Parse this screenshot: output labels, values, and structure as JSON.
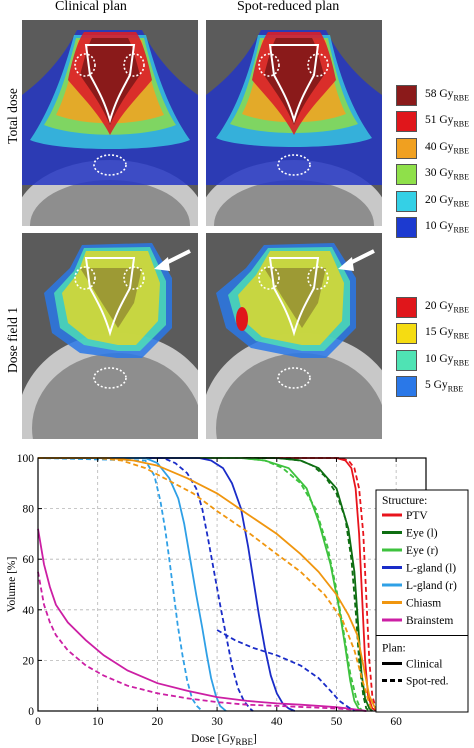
{
  "column_titles": [
    "Clinical plan",
    "Spot-reduced plan"
  ],
  "row_labels": [
    "Total dose",
    "Dose field 1"
  ],
  "total_dose_legend": [
    {
      "value": "58 Gy",
      "sub": "RBE",
      "color": "#8b1a1a"
    },
    {
      "value": "51 Gy",
      "sub": "RBE",
      "color": "#e0161b"
    },
    {
      "value": "40 Gy",
      "sub": "RBE",
      "color": "#f0a020"
    },
    {
      "value": "30 Gy",
      "sub": "RBE",
      "color": "#8fe04a"
    },
    {
      "value": "20 Gy",
      "sub": "RBE",
      "color": "#34d0e6"
    },
    {
      "value": "10 Gy",
      "sub": "RBE",
      "color": "#1c3ad0"
    }
  ],
  "field_legend": [
    {
      "value": "20 Gy",
      "sub": "RBE",
      "color": "#e0161b"
    },
    {
      "value": "15 Gy",
      "sub": "RBE",
      "color": "#f5dc12"
    },
    {
      "value": "10 Gy",
      "sub": "RBE",
      "color": "#4fe3b4"
    },
    {
      "value": "5 Gy",
      "sub": "RBE",
      "color": "#2a78e8"
    }
  ],
  "chart_data": {
    "type": "line",
    "xlabel": "Dose [Gy",
    "xlabel_sub": "RBE",
    "xlabel_suffix": "]",
    "ylabel": "Volume [%]",
    "xlim": [
      0,
      65
    ],
    "ylim": [
      0,
      100
    ],
    "xticks": [
      0,
      10,
      20,
      30,
      40,
      50,
      60
    ],
    "yticks": [
      0,
      20,
      40,
      60,
      80,
      100
    ],
    "grid": true,
    "legend_placement": "right",
    "structure_legend_title": "Structure:",
    "plan_legend_title": "Plan:",
    "plan_styles": [
      {
        "name": "Clinical",
        "dash": "solid"
      },
      {
        "name": "Spot-red.",
        "dash": "dashed"
      }
    ],
    "series": [
      {
        "name": "PTV",
        "color": "#e8141c",
        "clinical": [
          [
            0,
            100
          ],
          [
            50,
            100
          ],
          [
            51.5,
            99
          ],
          [
            52.5,
            96
          ],
          [
            53.2,
            88
          ],
          [
            53.8,
            70
          ],
          [
            54.3,
            45
          ],
          [
            54.8,
            20
          ],
          [
            55.3,
            6
          ],
          [
            56,
            1
          ],
          [
            57,
            0
          ]
        ],
        "spot": [
          [
            0,
            100
          ],
          [
            50.5,
            100
          ],
          [
            52,
            99
          ],
          [
            53,
            96
          ],
          [
            53.8,
            88
          ],
          [
            54.5,
            70
          ],
          [
            55,
            45
          ],
          [
            55.5,
            20
          ],
          [
            56,
            6
          ],
          [
            56.6,
            1
          ],
          [
            57.5,
            0
          ]
        ]
      },
      {
        "name": "Eye (l)",
        "color": "#0e6e12",
        "clinical": [
          [
            0,
            100
          ],
          [
            40,
            100
          ],
          [
            44,
            99
          ],
          [
            47,
            96
          ],
          [
            50,
            88
          ],
          [
            52,
            72
          ],
          [
            53,
            55
          ],
          [
            53.6,
            35
          ],
          [
            54.2,
            15
          ],
          [
            54.8,
            5
          ],
          [
            55.5,
            1
          ],
          [
            56,
            0
          ]
        ],
        "spot": [
          [
            0,
            100
          ],
          [
            40,
            100
          ],
          [
            44,
            99
          ],
          [
            46,
            97
          ],
          [
            48,
            93
          ],
          [
            50,
            86
          ],
          [
            51.5,
            76
          ],
          [
            52.5,
            60
          ],
          [
            53.2,
            40
          ],
          [
            53.8,
            20
          ],
          [
            54.5,
            6
          ],
          [
            55,
            1
          ],
          [
            55.6,
            0
          ]
        ]
      },
      {
        "name": "Eye (r)",
        "color": "#3ec23e",
        "clinical": [
          [
            0,
            100
          ],
          [
            34,
            100
          ],
          [
            38,
            99
          ],
          [
            42,
            96
          ],
          [
            45,
            88
          ],
          [
            47,
            75
          ],
          [
            49,
            58
          ],
          [
            50.5,
            40
          ],
          [
            51.5,
            25
          ],
          [
            52.3,
            12
          ],
          [
            53,
            4
          ],
          [
            53.7,
            1
          ],
          [
            54,
            0
          ]
        ],
        "spot": [
          [
            0,
            100
          ],
          [
            34,
            100
          ],
          [
            38,
            99
          ],
          [
            41,
            96
          ],
          [
            44,
            90
          ],
          [
            46.5,
            80
          ],
          [
            48.5,
            65
          ],
          [
            50,
            48
          ],
          [
            51.3,
            30
          ],
          [
            52.3,
            15
          ],
          [
            53.3,
            5
          ],
          [
            54,
            1
          ],
          [
            54.4,
            0
          ]
        ]
      },
      {
        "name": "L-gland (l)",
        "color": "#1a2cc8",
        "clinical": [
          [
            0,
            100
          ],
          [
            27,
            100
          ],
          [
            29,
            99
          ],
          [
            31,
            96
          ],
          [
            32.5,
            90
          ],
          [
            34,
            80
          ],
          [
            35.2,
            65
          ],
          [
            36.2,
            50
          ],
          [
            37,
            38
          ],
          [
            38,
            25
          ],
          [
            39,
            14
          ],
          [
            40,
            7
          ],
          [
            41,
            3
          ],
          [
            42,
            1
          ],
          [
            43,
            0
          ]
        ],
        "spot": [
          [
            0,
            100
          ],
          [
            21,
            100
          ],
          [
            23,
            98
          ],
          [
            25,
            94
          ],
          [
            26.5,
            88
          ],
          [
            27.5,
            80
          ],
          [
            28.5,
            68
          ],
          [
            29.5,
            55
          ],
          [
            30.5,
            42
          ],
          [
            31.5,
            30
          ],
          [
            32.5,
            18
          ],
          [
            33.5,
            9
          ],
          [
            34.5,
            4
          ],
          [
            35.5,
            1
          ],
          [
            36,
            0
          ]
        ]
      },
      {
        "name": "L-gland (r)",
        "color": "#2fa0e6",
        "clinical": [
          [
            0,
            100
          ],
          [
            18,
            100
          ],
          [
            20,
            98
          ],
          [
            22,
            92
          ],
          [
            23.5,
            84
          ],
          [
            24.5,
            74
          ],
          [
            25.5,
            60
          ],
          [
            26.5,
            46
          ],
          [
            27.5,
            33
          ],
          [
            28.3,
            22
          ],
          [
            29,
            13
          ],
          [
            29.8,
            6
          ],
          [
            30.5,
            2
          ],
          [
            31.5,
            0
          ]
        ],
        "spot": [
          [
            0,
            100
          ],
          [
            18,
            99
          ],
          [
            19.5,
            93
          ],
          [
            20.5,
            83
          ],
          [
            21.3,
            72
          ],
          [
            22,
            60
          ],
          [
            22.7,
            47
          ],
          [
            23.4,
            34
          ],
          [
            24.2,
            22
          ],
          [
            25,
            12
          ],
          [
            25.8,
            5
          ],
          [
            26.6,
            2
          ],
          [
            27.5,
            0
          ]
        ]
      },
      {
        "name": "Chiasm",
        "color": "#f0960f",
        "clinical": [
          [
            0,
            100
          ],
          [
            12,
            100
          ],
          [
            16,
            99
          ],
          [
            20,
            97
          ],
          [
            25,
            92
          ],
          [
            30,
            86
          ],
          [
            35,
            78
          ],
          [
            40,
            70
          ],
          [
            44,
            62
          ],
          [
            47,
            55
          ],
          [
            50,
            46
          ],
          [
            52,
            38
          ],
          [
            53.5,
            30
          ],
          [
            54.5,
            18
          ],
          [
            55.5,
            6
          ],
          [
            56.5,
            1
          ],
          [
            57,
            0
          ]
        ],
        "spot": [
          [
            0,
            100
          ],
          [
            10,
            100
          ],
          [
            14,
            99
          ],
          [
            18,
            96
          ],
          [
            22,
            91
          ],
          [
            26,
            86
          ],
          [
            30,
            79
          ],
          [
            35,
            71
          ],
          [
            40,
            62
          ],
          [
            44,
            55
          ],
          [
            48,
            46
          ],
          [
            51,
            36
          ],
          [
            53,
            24
          ],
          [
            54.5,
            11
          ],
          [
            55.5,
            3
          ],
          [
            56,
            0
          ]
        ]
      },
      {
        "name": "Brainstem",
        "color": "#cc1fa4",
        "clinical": [
          [
            0,
            72
          ],
          [
            1,
            58
          ],
          [
            2,
            49
          ],
          [
            3,
            42
          ],
          [
            5,
            35
          ],
          [
            8,
            28
          ],
          [
            11,
            22
          ],
          [
            15,
            16
          ],
          [
            20,
            11
          ],
          [
            25,
            8
          ],
          [
            30,
            5.5
          ],
          [
            35,
            4
          ],
          [
            40,
            3
          ],
          [
            44,
            2.5
          ],
          [
            47,
            2
          ],
          [
            50,
            1.5
          ],
          [
            52,
            1
          ],
          [
            54,
            0.3
          ],
          [
            55,
            0
          ]
        ],
        "spot": [
          [
            0,
            55
          ],
          [
            1,
            42
          ],
          [
            2,
            35
          ],
          [
            3,
            30
          ],
          [
            5,
            24
          ],
          [
            8,
            18
          ],
          [
            11,
            14
          ],
          [
            15,
            10
          ],
          [
            20,
            7
          ],
          [
            25,
            5
          ],
          [
            30,
            3.5
          ],
          [
            35,
            2.5
          ],
          [
            40,
            2
          ],
          [
            45,
            1.5
          ],
          [
            50,
            1
          ],
          [
            53,
            0.5
          ],
          [
            55,
            0
          ]
        ]
      }
    ],
    "extra_series": [
      {
        "name": "dark-blue dashed high-dose tail (Spot-reduced)",
        "color": "#1a2cc8",
        "dash": "dashed",
        "points": [
          [
            30,
            32
          ],
          [
            33,
            28
          ],
          [
            36,
            25
          ],
          [
            40,
            22
          ],
          [
            44,
            18
          ],
          [
            47,
            13
          ],
          [
            49,
            8
          ],
          [
            50.5,
            4
          ],
          [
            52,
            1.5
          ],
          [
            53,
            0
          ]
        ]
      }
    ]
  }
}
